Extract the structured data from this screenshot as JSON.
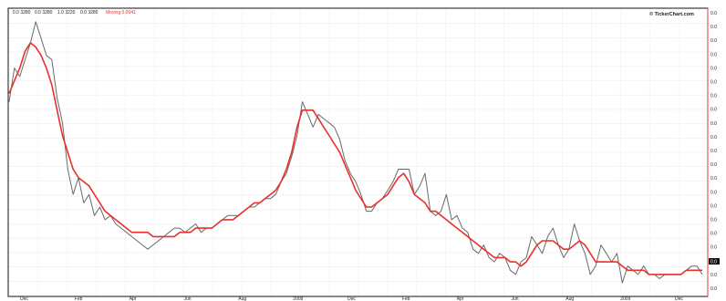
{
  "watermark": "© TickerChart.com",
  "chart_data": {
    "type": "line",
    "title": "",
    "xlabel": "",
    "ylabel": "",
    "grid": true,
    "legend": "none",
    "series": [
      {
        "color": "#6a6a6a",
        "values": [
          60,
          68,
          66,
          70,
          74,
          79,
          75,
          71,
          70,
          61,
          55,
          44,
          38,
          42,
          36,
          38,
          33,
          35,
          32,
          33,
          31,
          30,
          29,
          28,
          27,
          26,
          25,
          26,
          27,
          28,
          29,
          30,
          30,
          29,
          30,
          31,
          29,
          30,
          30,
          31,
          32,
          33,
          33,
          33,
          34,
          35,
          35,
          36,
          37,
          37,
          38,
          41,
          43,
          47,
          52,
          60,
          57,
          54,
          57,
          56,
          55,
          54,
          51,
          46,
          43,
          41,
          38,
          34,
          34,
          36,
          37,
          39,
          41,
          44,
          44,
          44,
          38,
          40,
          43,
          34,
          33,
          34,
          38,
          32,
          33,
          30,
          29,
          25,
          24,
          26,
          23,
          22,
          24,
          23,
          20,
          19,
          22,
          23,
          28,
          26,
          24,
          28,
          30,
          26,
          23,
          25,
          31,
          27,
          24,
          19,
          21,
          26,
          24,
          22,
          24,
          17,
          21,
          20,
          19,
          21,
          19,
          19,
          18,
          19,
          19,
          19,
          19,
          20,
          21,
          21,
          19
        ]
      },
      {
        "color": "#e8302c",
        "values": [
          62,
          65,
          68,
          72,
          74,
          73,
          71,
          68,
          64,
          58,
          52,
          48,
          44,
          42,
          41,
          40,
          38,
          36,
          34,
          33,
          32,
          31,
          30,
          29,
          29,
          29,
          29,
          28,
          28,
          28,
          28,
          28,
          29,
          29,
          29,
          30,
          30,
          30,
          30,
          31,
          32,
          32,
          32,
          33,
          34,
          35,
          36,
          36,
          37,
          38,
          39,
          41,
          44,
          48,
          54,
          58,
          58,
          58,
          56,
          54,
          52,
          50,
          48,
          45,
          42,
          39,
          37,
          35,
          35,
          36,
          37,
          38,
          40,
          42,
          43,
          41,
          38,
          37,
          36,
          34,
          34,
          33,
          32,
          31,
          30,
          29,
          28,
          27,
          26,
          25,
          24,
          23,
          23,
          23,
          22,
          22,
          21,
          22,
          24,
          26,
          27,
          27,
          27,
          26,
          25,
          25,
          26,
          27,
          26,
          24,
          22,
          22,
          22,
          22,
          22,
          21,
          20,
          20,
          20,
          20,
          19,
          19,
          19,
          19,
          19,
          19,
          19,
          20,
          20,
          20,
          20
        ]
      }
    ],
    "ylim": [
      14,
      82
    ]
  },
  "header_legend": [
    "0.0 3280",
    "0.0 3280",
    "1.0 3220",
    "0.0 3280"
  ],
  "header_legend_red": "Moving 0.0041",
  "y_tick_labels": [
    "0.0",
    "0.0",
    "0.0",
    "0.0",
    "0.0",
    "0.0",
    "0.0",
    "0.0",
    "0.0",
    "0.0",
    "0.0",
    "0.0",
    "0.0",
    "0.0",
    "0.0",
    "0.0",
    "0.0",
    "0.0",
    "0.0",
    "0.0",
    "0.0"
  ],
  "last_price_tag": "0.0",
  "x_tick_labels": [
    "Dec",
    "Feb",
    "Apr",
    "Jun",
    "Aug",
    "2008",
    "Dec",
    "Feb",
    "Apr",
    "Jun",
    "Aug",
    "2009",
    "Dec"
  ]
}
